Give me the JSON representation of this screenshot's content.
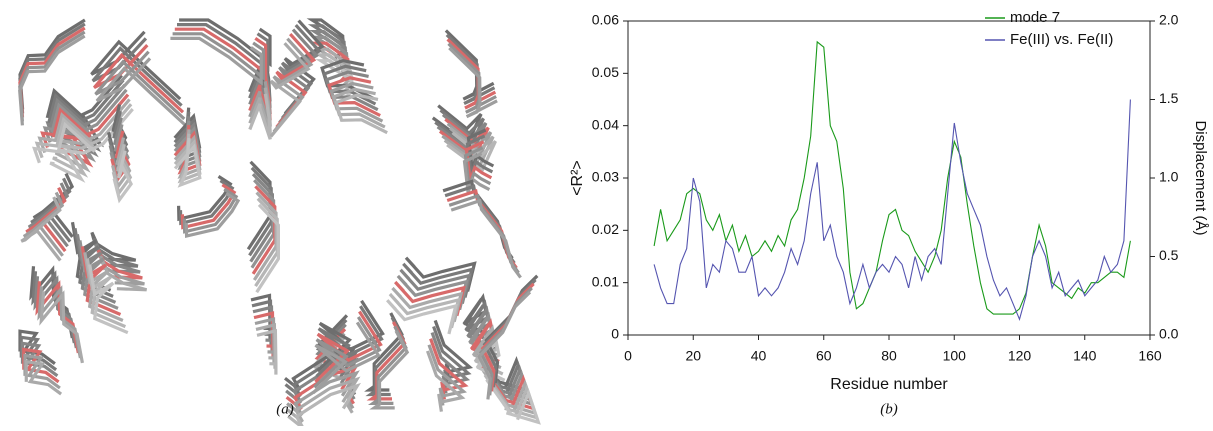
{
  "chart_data": {
    "type": "line",
    "caption": "(b)",
    "xlabel": "Residue number",
    "ylabel": "<R²>",
    "y2label": "Displacement (Å)",
    "x": [
      8,
      10,
      12,
      14,
      16,
      18,
      20,
      22,
      24,
      26,
      28,
      30,
      32,
      34,
      36,
      38,
      40,
      42,
      44,
      46,
      48,
      50,
      52,
      54,
      56,
      58,
      60,
      62,
      64,
      66,
      68,
      70,
      72,
      74,
      76,
      78,
      80,
      82,
      84,
      86,
      88,
      90,
      92,
      94,
      96,
      98,
      100,
      102,
      104,
      106,
      108,
      110,
      112,
      114,
      116,
      118,
      120,
      122,
      124,
      126,
      128,
      130,
      132,
      134,
      136,
      138,
      140,
      142,
      144,
      146,
      148,
      150,
      152,
      154
    ],
    "series": [
      {
        "name": "mode 7",
        "color": "#1a9a1a",
        "values": [
          0.017,
          0.024,
          0.018,
          0.02,
          0.022,
          0.027,
          0.028,
          0.027,
          0.022,
          0.02,
          0.023,
          0.018,
          0.021,
          0.016,
          0.019,
          0.015,
          0.016,
          0.018,
          0.016,
          0.019,
          0.017,
          0.022,
          0.024,
          0.03,
          0.038,
          0.056,
          0.055,
          0.04,
          0.037,
          0.028,
          0.012,
          0.005,
          0.006,
          0.009,
          0.012,
          0.018,
          0.023,
          0.024,
          0.02,
          0.019,
          0.016,
          0.014,
          0.012,
          0.015,
          0.02,
          0.03,
          0.037,
          0.034,
          0.025,
          0.017,
          0.01,
          0.005,
          0.004,
          0.004,
          0.004,
          0.004,
          0.005,
          0.008,
          0.015,
          0.021,
          0.017,
          0.01,
          0.009,
          0.008,
          0.007,
          0.009,
          0.008,
          0.01,
          0.01,
          0.011,
          0.012,
          0.012,
          0.011,
          0.018
        ]
      },
      {
        "name": "Fe(III) vs. Fe(II)",
        "color": "#5555b0",
        "axis": "y2",
        "values": [
          0.45,
          0.3,
          0.2,
          0.2,
          0.45,
          0.55,
          1.0,
          0.85,
          0.3,
          0.45,
          0.4,
          0.6,
          0.55,
          0.4,
          0.4,
          0.5,
          0.25,
          0.3,
          0.25,
          0.3,
          0.4,
          0.55,
          0.45,
          0.6,
          0.9,
          1.1,
          0.6,
          0.7,
          0.5,
          0.4,
          0.2,
          0.3,
          0.45,
          0.3,
          0.4,
          0.45,
          0.4,
          0.5,
          0.45,
          0.3,
          0.5,
          0.35,
          0.5,
          0.55,
          0.45,
          0.9,
          1.35,
          1.1,
          0.9,
          0.8,
          0.7,
          0.5,
          0.35,
          0.25,
          0.3,
          0.2,
          0.1,
          0.25,
          0.5,
          0.6,
          0.5,
          0.3,
          0.4,
          0.25,
          0.3,
          0.35,
          0.25,
          0.3,
          0.35,
          0.5,
          0.4,
          0.45,
          0.6,
          1.5
        ]
      }
    ],
    "xlim": [
      0,
      160
    ],
    "xticks": [
      0,
      20,
      40,
      60,
      80,
      100,
      120,
      140,
      160
    ],
    "ylim": [
      0,
      0.06
    ],
    "yticks": [
      0,
      0.01,
      0.02,
      0.03,
      0.04,
      0.05,
      0.06
    ],
    "y2lim": [
      0,
      2
    ],
    "y2ticks": [
      {
        "value": 0,
        "label": "0.0"
      },
      {
        "value": 0.5,
        "label": "0.5"
      },
      {
        "value": 1,
        "label": "1.0"
      },
      {
        "value": 1.5,
        "label": "1.5"
      },
      {
        "value": 2,
        "label": "2.0"
      }
    ],
    "legend": "upper right"
  },
  "panel_a": {
    "caption": "(a)"
  }
}
